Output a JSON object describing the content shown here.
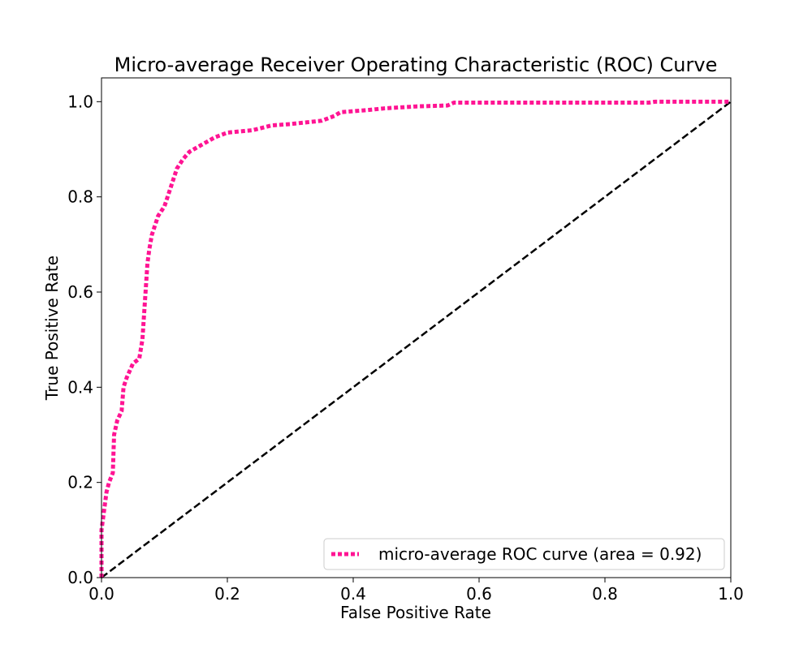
{
  "chart_data": {
    "type": "line",
    "title": "Micro-average Receiver Operating Characteristic (ROC) Curve",
    "xlabel": "False Positive Rate",
    "ylabel": "True Positive Rate",
    "xlim": [
      0.0,
      1.0
    ],
    "ylim": [
      0.0,
      1.05
    ],
    "xticks": [
      "0.0",
      "0.2",
      "0.4",
      "0.6",
      "0.8",
      "1.0"
    ],
    "yticks": [
      "0.0",
      "0.2",
      "0.4",
      "0.6",
      "0.8",
      "1.0"
    ],
    "grid": false,
    "legend_position": "lower-right",
    "series": [
      {
        "name": "micro-average ROC curve (area = 0.92)",
        "color": "#ff1493",
        "style": "dotted",
        "x": [
          0.0,
          0.0,
          0.005,
          0.008,
          0.012,
          0.018,
          0.02,
          0.025,
          0.032,
          0.035,
          0.04,
          0.05,
          0.06,
          0.065,
          0.07,
          0.073,
          0.076,
          0.08,
          0.09,
          0.1,
          0.11,
          0.12,
          0.13,
          0.14,
          0.16,
          0.18,
          0.2,
          0.24,
          0.27,
          0.3,
          0.35,
          0.37,
          0.38,
          0.42,
          0.45,
          0.5,
          0.55,
          0.56,
          0.65,
          0.75,
          0.87,
          0.88,
          1.0
        ],
        "y": [
          0.0,
          0.1,
          0.15,
          0.18,
          0.2,
          0.22,
          0.3,
          0.33,
          0.35,
          0.4,
          0.42,
          0.45,
          0.46,
          0.5,
          0.6,
          0.66,
          0.69,
          0.72,
          0.76,
          0.78,
          0.82,
          0.86,
          0.88,
          0.895,
          0.91,
          0.925,
          0.935,
          0.94,
          0.95,
          0.953,
          0.96,
          0.97,
          0.978,
          0.982,
          0.986,
          0.99,
          0.992,
          0.998,
          0.998,
          0.998,
          0.998,
          1.0,
          1.0
        ]
      },
      {
        "name": "",
        "color": "#000000",
        "style": "dashed",
        "x": [
          0.0,
          1.0
        ],
        "y": [
          0.0,
          1.0
        ]
      }
    ]
  }
}
